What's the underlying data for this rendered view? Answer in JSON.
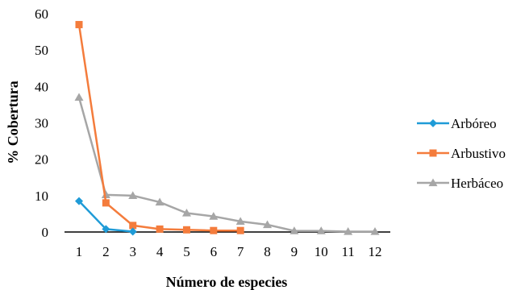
{
  "chart_data": {
    "type": "line",
    "x": [
      1,
      2,
      3,
      4,
      5,
      6,
      7,
      8,
      9,
      10,
      11,
      12
    ],
    "xlabel": "Número de especies",
    "ylabel": "% Cobertura",
    "ylim": [
      0,
      60
    ],
    "yticks": [
      "0",
      "10",
      "20",
      "30",
      "40",
      "50",
      "60"
    ],
    "xticks": [
      "1",
      "2",
      "3",
      "4",
      "5",
      "6",
      "7",
      "8",
      "9",
      "10",
      "11",
      "12"
    ],
    "grid": false,
    "legend_position": "right",
    "series": [
      {
        "name": "Arbóreo",
        "color": "#1f9bd7",
        "marker": "diamond",
        "x": [
          1,
          2,
          3
        ],
        "values": [
          8.5,
          0.8,
          0.1
        ]
      },
      {
        "name": "Arbustivo",
        "color": "#f47c3c",
        "marker": "square",
        "x": [
          1,
          2,
          3,
          4,
          5,
          6,
          7
        ],
        "values": [
          57,
          8,
          1.8,
          0.8,
          0.6,
          0.4,
          0.4
        ]
      },
      {
        "name": "Herbáceo",
        "color": "#a6a6a6",
        "marker": "triangle",
        "x": [
          1,
          2,
          3,
          4,
          5,
          6,
          7,
          8,
          9,
          10,
          11,
          12
        ],
        "values": [
          37,
          10.2,
          10,
          8.2,
          5.2,
          4.3,
          2.9,
          2,
          0.3,
          0.3,
          0.1,
          0.1
        ]
      }
    ]
  }
}
